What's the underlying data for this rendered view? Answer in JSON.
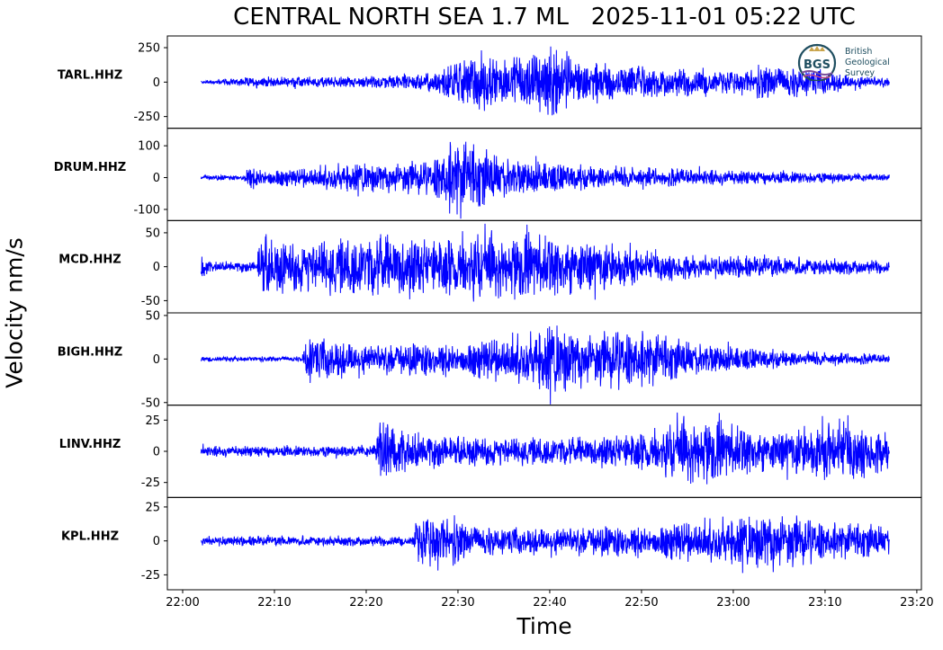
{
  "title": "CENTRAL NORTH SEA 1.7 ML   2025-11-01 05:22 UTC",
  "xlabel": "Time",
  "ylabel": "Velocity nm/s",
  "logo": {
    "abbrev": "BGS",
    "lines": [
      "British",
      "Geological",
      "Survey"
    ],
    "color": "#1f4e60"
  },
  "colors": {
    "trace": "#0000ff",
    "axis": "#000000",
    "background": "#ffffff"
  },
  "chart_data": {
    "type": "line",
    "x_unit": "time",
    "xlim": [
      "21:58:20",
      "23:20:30"
    ],
    "x_ticks": [
      "22:00",
      "22:10",
      "22:20",
      "22:30",
      "22:40",
      "22:50",
      "23:00",
      "23:10",
      "23:20"
    ],
    "trace_start": "22:02",
    "trace_end": "23:17",
    "grid": false,
    "series": [
      {
        "name": "TARL.HHZ",
        "ylim": [
          -335,
          335
        ],
        "y_ticks": [
          {
            "v": 250,
            "t": "250"
          },
          {
            "v": 0,
            "t": "0"
          },
          {
            "v": -250,
            "t": "-250"
          }
        ],
        "noise": 10,
        "envelope": [
          [
            0,
            12
          ],
          [
            5,
            40
          ],
          [
            13,
            45
          ],
          [
            21,
            50
          ],
          [
            26,
            90
          ],
          [
            28,
            200
          ],
          [
            31,
            260
          ],
          [
            33,
            180
          ],
          [
            35,
            200
          ],
          [
            37,
            290
          ],
          [
            39,
            300
          ],
          [
            41,
            170
          ],
          [
            43,
            200
          ],
          [
            45,
            140
          ],
          [
            50,
            110
          ],
          [
            55,
            120
          ],
          [
            58,
            100
          ],
          [
            62,
            140
          ],
          [
            66,
            120
          ],
          [
            70,
            60
          ],
          [
            75,
            35
          ]
        ]
      },
      {
        "name": "DRUM.HHZ",
        "ylim": [
          -135,
          155
        ],
        "y_ticks": [
          {
            "v": 100,
            "t": "100"
          },
          {
            "v": 0,
            "t": "0"
          },
          {
            "v": -100,
            "t": "-100"
          }
        ],
        "noise": 5,
        "envelope": [
          [
            0,
            8
          ],
          [
            4.5,
            8
          ],
          [
            5,
            40
          ],
          [
            10,
            30
          ],
          [
            15,
            50
          ],
          [
            22,
            60
          ],
          [
            25,
            55
          ],
          [
            27,
            130
          ],
          [
            28,
            145
          ],
          [
            30,
            110
          ],
          [
            32,
            85
          ],
          [
            35,
            60
          ],
          [
            40,
            45
          ],
          [
            45,
            40
          ],
          [
            55,
            30
          ],
          [
            65,
            22
          ],
          [
            75,
            10
          ]
        ]
      },
      {
        "name": "MCD.HHZ",
        "ylim": [
          -68,
          68
        ],
        "y_ticks": [
          {
            "v": 50,
            "t": "50"
          },
          {
            "v": 0,
            "t": "0"
          },
          {
            "v": -50,
            "t": "-50"
          }
        ],
        "noise": 5,
        "envelope": [
          [
            0,
            22
          ],
          [
            1,
            8
          ],
          [
            6,
            8
          ],
          [
            6.5,
            55
          ],
          [
            8,
            45
          ],
          [
            12,
            40
          ],
          [
            20,
            55
          ],
          [
            25,
            45
          ],
          [
            31,
            60
          ],
          [
            34,
            55
          ],
          [
            38,
            50
          ],
          [
            42,
            45
          ],
          [
            48,
            25
          ],
          [
            55,
            20
          ],
          [
            65,
            15
          ],
          [
            75,
            10
          ]
        ]
      },
      {
        "name": "BIGH.HHZ",
        "ylim": [
          -53,
          53
        ],
        "y_ticks": [
          {
            "v": 50,
            "t": "50"
          },
          {
            "v": 0,
            "t": "0"
          },
          {
            "v": -50,
            "t": "-50"
          }
        ],
        "noise": 3,
        "envelope": [
          [
            0,
            3
          ],
          [
            11,
            3
          ],
          [
            11.5,
            35
          ],
          [
            13,
            25
          ],
          [
            18,
            18
          ],
          [
            24,
            20
          ],
          [
            30,
            25
          ],
          [
            36,
            35
          ],
          [
            38,
            48
          ],
          [
            40,
            45
          ],
          [
            43,
            35
          ],
          [
            48,
            38
          ],
          [
            52,
            25
          ],
          [
            58,
            15
          ],
          [
            65,
            10
          ],
          [
            75,
            6
          ]
        ]
      },
      {
        "name": "LINV.HHZ",
        "ylim": [
          -37,
          37
        ],
        "y_ticks": [
          {
            "v": 25,
            "t": "25"
          },
          {
            "v": 0,
            "t": "0"
          },
          {
            "v": -25,
            "t": "-25"
          }
        ],
        "noise": 3,
        "envelope": [
          [
            0,
            5
          ],
          [
            19,
            5
          ],
          [
            19.3,
            30
          ],
          [
            21,
            20
          ],
          [
            25,
            14
          ],
          [
            35,
            12
          ],
          [
            45,
            14
          ],
          [
            50,
            20
          ],
          [
            52,
            30
          ],
          [
            54,
            33
          ],
          [
            57,
            25
          ],
          [
            62,
            18
          ],
          [
            67,
            22
          ],
          [
            70,
            28
          ],
          [
            75,
            18
          ]
        ]
      },
      {
        "name": "KPL.HHZ",
        "ylim": [
          -36,
          32
        ],
        "y_ticks": [
          {
            "v": 25,
            "t": "25"
          },
          {
            "v": 0,
            "t": "0"
          },
          {
            "v": -25,
            "t": "-25"
          }
        ],
        "noise": 2,
        "envelope": [
          [
            0,
            4
          ],
          [
            23,
            4
          ],
          [
            23.3,
            20
          ],
          [
            26,
            25
          ],
          [
            29,
            14
          ],
          [
            35,
            10
          ],
          [
            45,
            12
          ],
          [
            55,
            18
          ],
          [
            60,
            22
          ],
          [
            62,
            28
          ],
          [
            66,
            18
          ],
          [
            70,
            15
          ],
          [
            75,
            12
          ]
        ]
      }
    ]
  }
}
